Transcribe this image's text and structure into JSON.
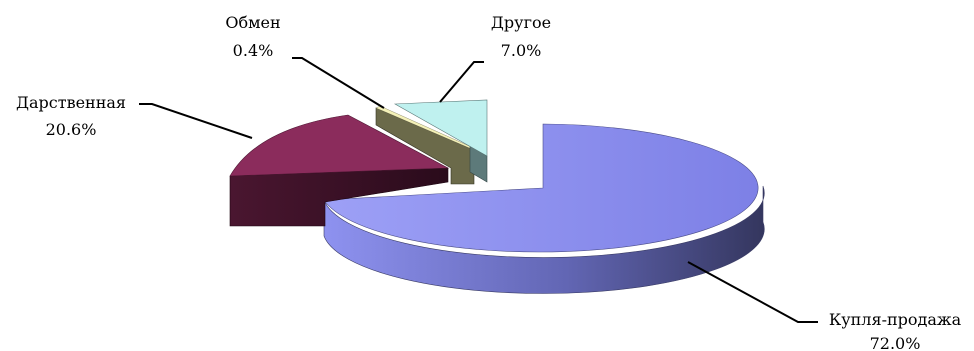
{
  "chart_data": {
    "type": "pie",
    "style": "3d-exploded",
    "slices": [
      {
        "name": "Купля-продажа",
        "value": 72.0,
        "label": "72.0%",
        "color": "#8b8ef0"
      },
      {
        "name": "Дарственная",
        "value": 20.6,
        "label": "20.6%",
        "color": "#8b2c5c"
      },
      {
        "name": "Обмен",
        "value": 0.4,
        "label": "0.4%",
        "color": "#f4f1b8"
      },
      {
        "name": "Другое",
        "value": 7.0,
        "label": "7.0%",
        "color": "#bff1ef"
      }
    ],
    "legend": "none",
    "title": ""
  }
}
